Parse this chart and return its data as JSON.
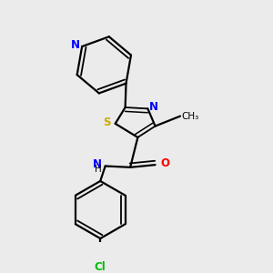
{
  "background_color": "#ebebeb",
  "atom_colors": {
    "N": "#0000ff",
    "S": "#ccaa00",
    "O": "#ff0000",
    "Cl": "#00bb00",
    "C": "#000000",
    "H": "#000000"
  },
  "figsize": [
    3.0,
    3.0
  ],
  "dpi": 100
}
